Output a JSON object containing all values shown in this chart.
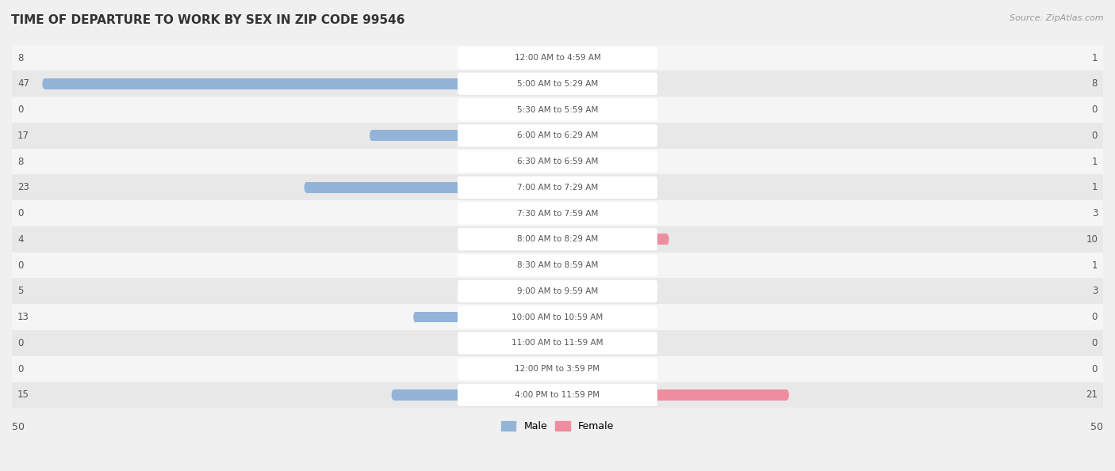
{
  "title": "TIME OF DEPARTURE TO WORK BY SEX IN ZIP CODE 99546",
  "source": "Source: ZipAtlas.com",
  "categories": [
    "12:00 AM to 4:59 AM",
    "5:00 AM to 5:29 AM",
    "5:30 AM to 5:59 AM",
    "6:00 AM to 6:29 AM",
    "6:30 AM to 6:59 AM",
    "7:00 AM to 7:29 AM",
    "7:30 AM to 7:59 AM",
    "8:00 AM to 8:29 AM",
    "8:30 AM to 8:59 AM",
    "9:00 AM to 9:59 AM",
    "10:00 AM to 10:59 AM",
    "11:00 AM to 11:59 AM",
    "12:00 PM to 3:59 PM",
    "4:00 PM to 11:59 PM"
  ],
  "male_values": [
    8,
    47,
    0,
    17,
    8,
    23,
    0,
    4,
    0,
    5,
    13,
    0,
    0,
    15
  ],
  "female_values": [
    1,
    8,
    0,
    0,
    1,
    1,
    3,
    10,
    1,
    3,
    0,
    0,
    0,
    21
  ],
  "male_color": "#92b4d8",
  "female_color": "#f08ca0",
  "male_label": "Male",
  "female_label": "Female",
  "axis_max": 50,
  "bg_color": "#f0f0f0",
  "row_bg_even": "#f5f5f5",
  "row_bg_odd": "#e8e8e8",
  "title_color": "#333333",
  "value_label_color": "#555555",
  "category_label_color": "#555555",
  "bar_height": 0.42,
  "min_bar_stub": 0.8,
  "label_fontsize": 8.5,
  "category_fontsize": 7.5,
  "title_fontsize": 11
}
